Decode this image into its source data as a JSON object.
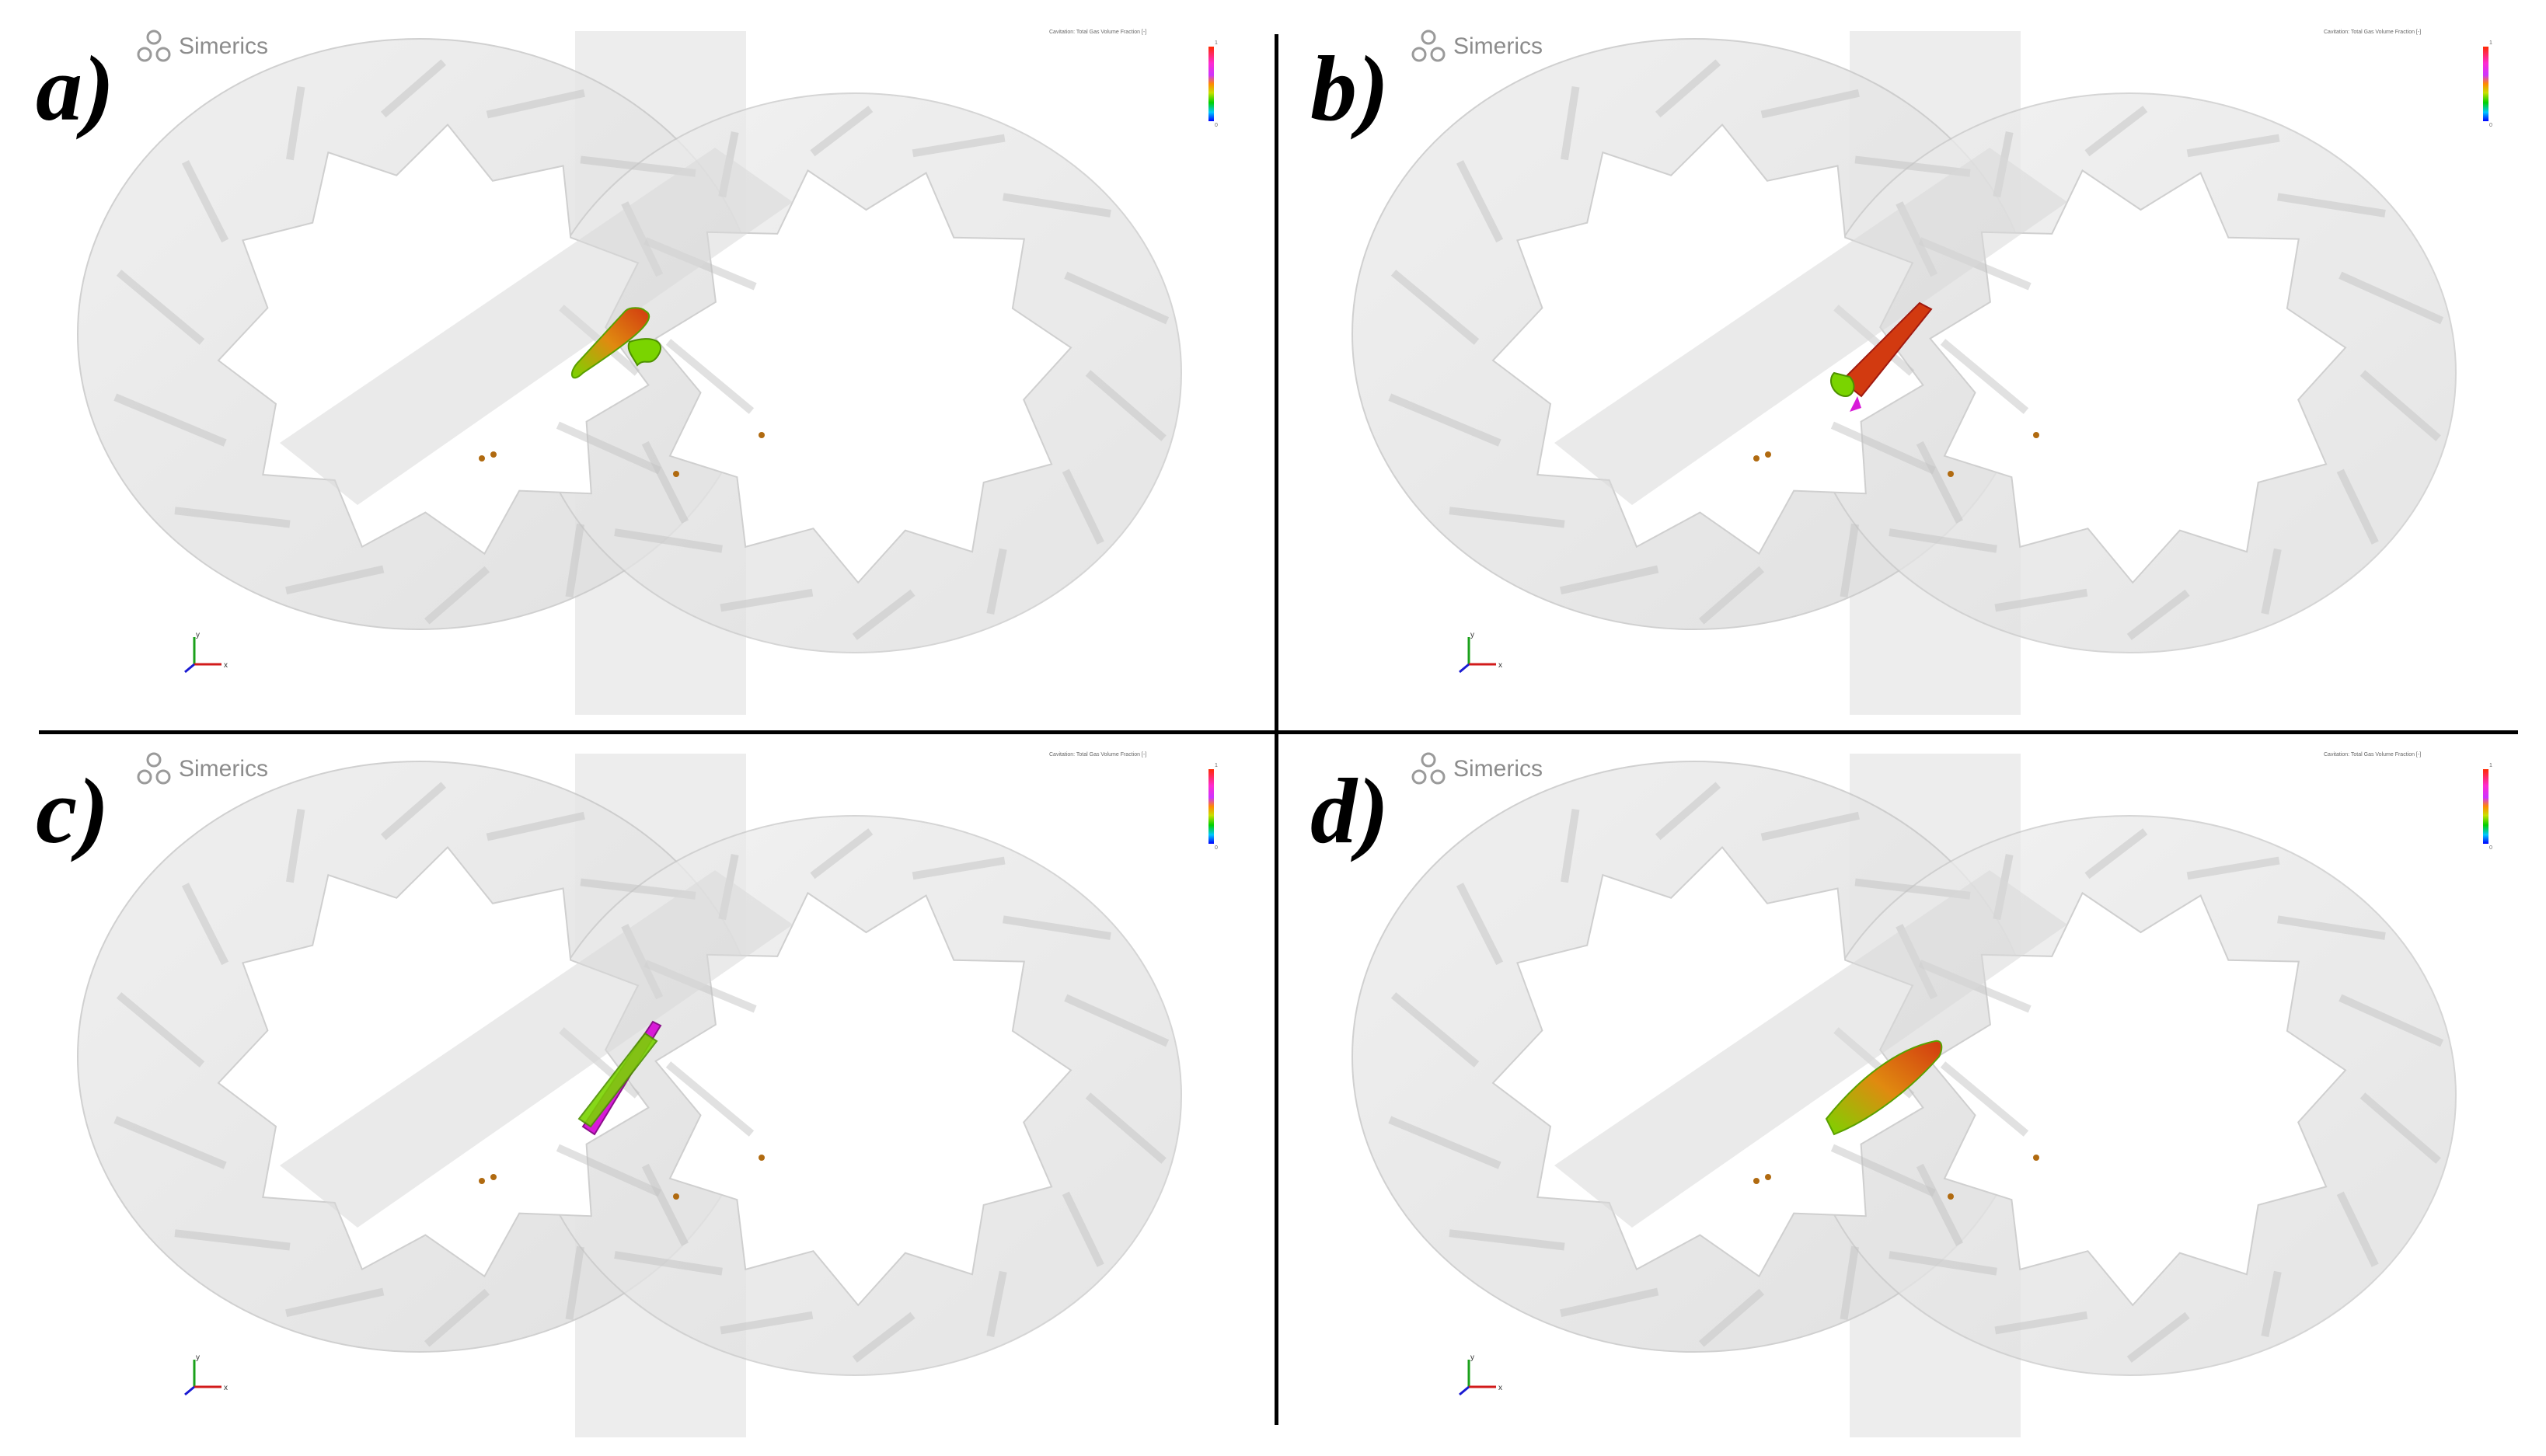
{
  "panels": [
    {
      "label": "a)",
      "brand": "Simerics",
      "legend_title": "Cavitation: Total Gas Volume Fraction [-]",
      "legend_max": "1",
      "legend_min": "0"
    },
    {
      "label": "b)",
      "brand": "Simerics",
      "legend_title": "Cavitation: Total Gas Volume Fraction [-]",
      "legend_max": "1",
      "legend_min": "0"
    },
    {
      "label": "c)",
      "brand": "Simerics",
      "legend_title": "Cavitation: Total Gas Volume Fraction [-]",
      "legend_max": "1",
      "legend_min": "0"
    },
    {
      "label": "d)",
      "brand": "Simerics",
      "legend_title": "Cavitation: Total Gas Volume Fraction [-]",
      "legend_max": "1",
      "legend_min": "0"
    }
  ],
  "axes_labels": {
    "x": "x",
    "y": "y",
    "z": "z"
  },
  "colors": {
    "gear_fill": "#e6e6e6",
    "gear_edge": "#c8c8c8",
    "iso_green": "#7ad400",
    "iso_red": "#d23a10",
    "iso_magenta": "#d81ad8"
  }
}
